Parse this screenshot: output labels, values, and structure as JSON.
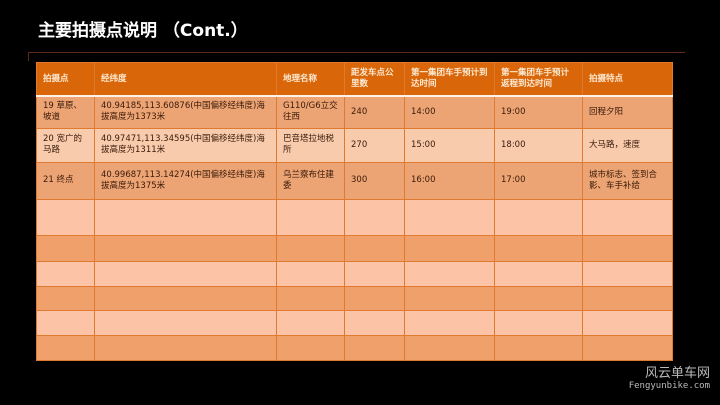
{
  "title": "主要拍摄点说明 （Cont.）",
  "table": {
    "headers": [
      "拍摄点",
      "经纬度",
      "地理名称",
      "距发车点公里数",
      "第一集团车手预计到达时间",
      "第一集团车手预计返程到达时间",
      "拍摄特点"
    ],
    "rows": [
      [
        "19 草原、坡道",
        "40.94185,113.60876(中国偏移经纬度)海拔高度为1373米",
        "G110/G6立交往西",
        "240",
        "14:00",
        "19:00",
        "回程夕阳"
      ],
      [
        "20 宽广的马路",
        "40.97471,113.34595(中国偏移经纬度)海拔高度为1311米",
        "巴音塔拉地税所",
        "270",
        "15:00",
        "18:00",
        "大马路，速度"
      ],
      [
        "21 终点",
        "40.99687,113.14274(中国偏移经纬度)海拔高度为1375米",
        "乌兰察布住建委",
        "300",
        "16:00",
        "17:00",
        "城市标志、签到合影、车手补给"
      ]
    ]
  },
  "watermark": {
    "cn": "风云单车网",
    "en": "Fengyunbike.com"
  },
  "colors": {
    "header": "#d9670a",
    "row_dark": "#eda474",
    "row_light": "#f8cbad"
  }
}
